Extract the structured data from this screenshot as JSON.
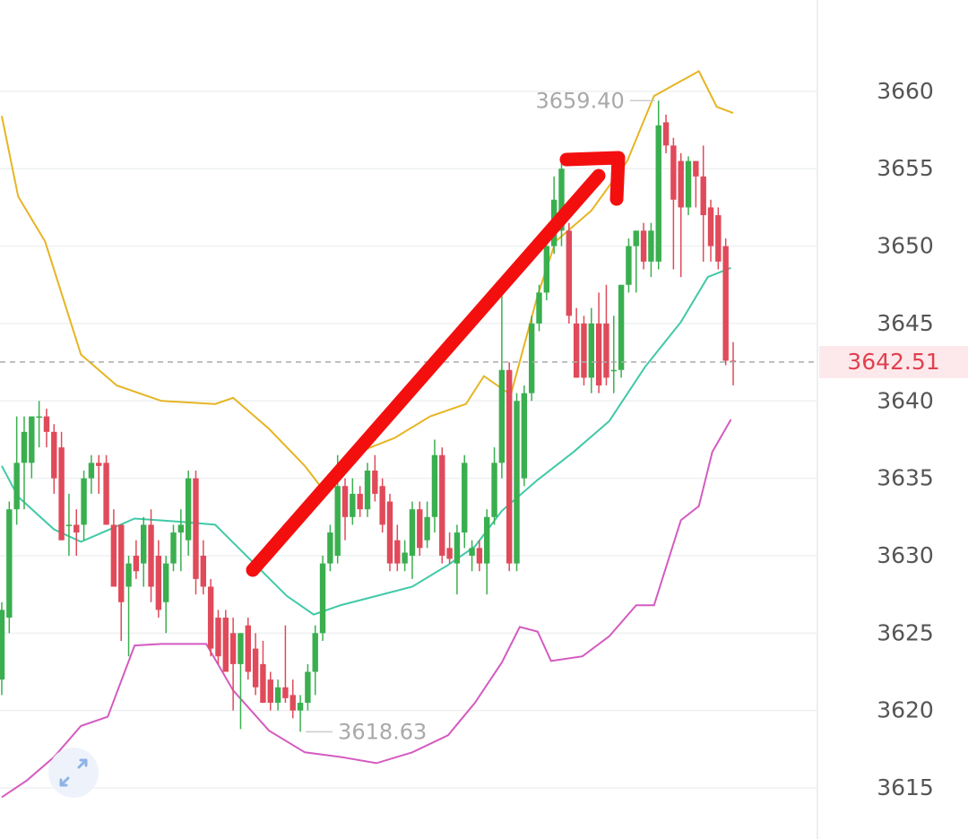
{
  "chart_data": {
    "type": "candlestick",
    "up_color": "#3aaf4f",
    "down_color": "#e04a5a",
    "open": [
      3622,
      3626,
      3633,
      3636,
      3636,
      3639,
      3639,
      3638,
      3637,
      3632,
      3632,
      3632,
      3635,
      3636,
      3636,
      3632,
      3632,
      3628,
      3630,
      3629.5,
      3632,
      3630,
      3627,
      3629.5,
      3631.5,
      3631,
      3635,
      3630,
      3628,
      3626,
      3626,
      3625,
      3623,
      3625.5,
      3624,
      3623,
      3622,
      3620.5,
      3621.5,
      3621,
      3620,
      3620.5,
      3622.5,
      3625,
      3629.5,
      3630,
      3634.5,
      3632.5,
      3634,
      3633,
      3635.5,
      3634.5,
      3633.5,
      3631,
      3629.5,
      3630,
      3633,
      3631,
      3632.5,
      3636.5,
      3630.5,
      3629.5,
      3631.5,
      3630,
      3630.5,
      3629.5,
      3632.5,
      3636,
      3642,
      3629.5,
      3635,
      3640.5,
      3645,
      3647,
      3650,
      3651,
      3651,
      3645,
      3645,
      3641.5,
      3645,
      3645,
      3642,
      3642,
      3647.5,
      3650,
      3651,
      3649,
      3649,
      3658,
      3656.5,
      3655.5,
      3652.5,
      3655.5,
      3654.5,
      3652.5,
      3652,
      3650,
      3642.6
    ],
    "high": [
      3627,
      3633.5,
      3639,
      3639,
      3639,
      3640,
      3639.5,
      3638.5,
      3638,
      3634,
      3633,
      3635.5,
      3636.5,
      3636.5,
      3636.5,
      3633,
      3632,
      3630,
      3631,
      3632.5,
      3633,
      3631,
      3630,
      3632,
      3633,
      3635.5,
      3635.5,
      3631,
      3628.5,
      3626.5,
      3626.5,
      3626,
      3625,
      3626,
      3625,
      3624.5,
      3622.5,
      3622,
      3625.5,
      3622,
      3621,
      3623,
      3625.5,
      3630,
      3632,
      3636.5,
      3635,
      3635,
      3634.5,
      3636,
      3636.5,
      3635,
      3634,
      3632,
      3631,
      3633.5,
      3633.5,
      3633.5,
      3637.5,
      3637,
      3631.5,
      3632,
      3636.5,
      3631,
      3631,
      3633,
      3637,
      3647,
      3642.5,
      3640.5,
      3641,
      3645.5,
      3647.5,
      3650.5,
      3654.5,
      3655.5,
      3651.5,
      3646,
      3645.5,
      3646,
      3647,
      3647.5,
      3645.5,
      3647.5,
      3650.5,
      3651,
      3651.5,
      3651.5,
      3659.4,
      3658.5,
      3657,
      3656,
      3655.8,
      3655.5,
      3656.5,
      3653,
      3652.5,
      3650.5,
      3643.8
    ],
    "low": [
      3621,
      3625,
      3632,
      3633,
      3635,
      3637,
      3637,
      3634,
      3631,
      3630,
      3630,
      3631,
      3634,
      3634,
      3632,
      3628,
      3624.5,
      3623.5,
      3628.5,
      3628,
      3627,
      3626,
      3625,
      3629,
      3629,
      3630,
      3627.5,
      3627.5,
      3623.5,
      3623,
      3622.5,
      3620,
      3618.8,
      3622,
      3621,
      3620.5,
      3620,
      3620,
      3620.5,
      3619.5,
      3618.63,
      3620,
      3621,
      3624.5,
      3629,
      3629.5,
      3631,
      3632,
      3632.5,
      3632.5,
      3633.5,
      3631.5,
      3629,
      3629,
      3629,
      3628.5,
      3630,
      3630.5,
      3631.5,
      3629.5,
      3629.5,
      3627.5,
      3630.5,
      3629,
      3629,
      3627.5,
      3632,
      3635,
      3629,
      3629,
      3634.5,
      3640,
      3644.5,
      3646.5,
      3649.5,
      3650,
      3645,
      3641.5,
      3641,
      3640.5,
      3640.5,
      3641,
      3640.5,
      3641.5,
      3647,
      3647,
      3648.5,
      3648,
      3648.5,
      3656,
      3648.5,
      3648,
      3652,
      3652.5,
      3649,
      3649,
      3648.5,
      3642.3,
      3641
    ],
    "close": [
      3626.5,
      3633,
      3636,
      3638,
      3639,
      3639,
      3638,
      3635,
      3631,
      3632,
      3631.5,
      3635,
      3636,
      3635.8,
      3632,
      3628,
      3627,
      3629.5,
      3629,
      3632,
      3628,
      3626.5,
      3629.5,
      3631.5,
      3632,
      3635,
      3628.5,
      3628,
      3624,
      3623.5,
      3622.5,
      3623,
      3625,
      3622.5,
      3621.5,
      3620.5,
      3620.5,
      3621.5,
      3620.8,
      3620,
      3620.5,
      3622.5,
      3625,
      3629.5,
      3631.5,
      3634.5,
      3632.5,
      3634,
      3633,
      3635.5,
      3634,
      3632,
      3629.5,
      3629.5,
      3630.2,
      3633,
      3630.5,
      3632.5,
      3636.5,
      3630,
      3629.8,
      3631.5,
      3636,
      3630.5,
      3629.5,
      3632.5,
      3636,
      3642,
      3629.5,
      3640,
      3640.5,
      3645,
      3647,
      3650,
      3653,
      3655,
      3645.5,
      3641.5,
      3641.5,
      3645,
      3641,
      3641.5,
      3642,
      3647.5,
      3650,
      3651,
      3649,
      3651,
      3657.8,
      3656.5,
      3653,
      3652.5,
      3655.5,
      3654.5,
      3652,
      3650,
      3649,
      3642.6,
      3642.51
    ],
    "bands": [
      {
        "color": "#e6b523",
        "x": [
          0,
          2.2,
          5.8,
          10.6,
          15.4,
          21.4,
          28.6,
          31,
          35.8,
          40.6,
          43,
          47.8,
          52.6,
          57.4,
          62.2,
          64.6,
          68.2,
          71.8,
          74.2,
          79,
          83.8,
          87.4,
          93.4,
          95.8,
          98
        ],
        "values": [
          3658.4,
          3653.2,
          3650.3,
          3643,
          3641,
          3640,
          3639.8,
          3640.2,
          3638.2,
          3635.8,
          3634.3,
          3636.7,
          3637.6,
          3639,
          3639.8,
          3641.6,
          3640.4,
          3646.8,
          3650.3,
          3652.3,
          3655.5,
          3659.7,
          3661.3,
          3659,
          3658.6
        ]
      },
      {
        "color": "#40c9a6",
        "x": [
          0,
          2.2,
          7,
          10.6,
          17.8,
          23.8,
          28.6,
          33.4,
          38.2,
          41.8,
          45.4,
          50.2,
          55,
          59.8,
          63.4,
          67,
          71.8,
          76.6,
          81.4,
          86.2,
          91,
          94.6,
          97.7
        ],
        "values": [
          3635.8,
          3633.8,
          3631.7,
          3630.9,
          3632.4,
          3632.2,
          3632,
          3629.7,
          3627.4,
          3626.2,
          3626.8,
          3627.4,
          3628,
          3629.4,
          3630.6,
          3632.9,
          3634.9,
          3636.7,
          3638.7,
          3642.2,
          3645.1,
          3648,
          3648.6
        ]
      },
      {
        "color": "#d45bc0",
        "x": [
          0,
          3.4,
          7,
          10.6,
          14.2,
          17.8,
          21.4,
          27.4,
          31,
          35.8,
          40.6,
          45.4,
          50.2,
          55,
          59.8,
          63.4,
          67,
          69.4,
          71.8,
          73.6,
          77.8,
          81.4,
          85,
          87.4,
          91,
          93.4,
          95.2,
          97.7
        ],
        "values": [
          3614.4,
          3615.5,
          3617,
          3619,
          3619.6,
          3624.2,
          3624.3,
          3624.3,
          3621.3,
          3618.7,
          3617.3,
          3617,
          3616.6,
          3617.3,
          3618.4,
          3620.5,
          3623.1,
          3625.4,
          3625.1,
          3623.2,
          3623.5,
          3624.8,
          3626.8,
          3626.8,
          3632.3,
          3633.2,
          3636.7,
          3638.8
        ]
      }
    ],
    "annotations": [
      {
        "value": 3659.4,
        "label": "3659.40"
      },
      3618.63
    ],
    "ylim": [
      3611.7,
      3665.9
    ],
    "yticks": [
      3615,
      3620,
      3625,
      3630,
      3635,
      3640,
      3645,
      3650,
      3655,
      3660
    ],
    "grid": true
  }
}
